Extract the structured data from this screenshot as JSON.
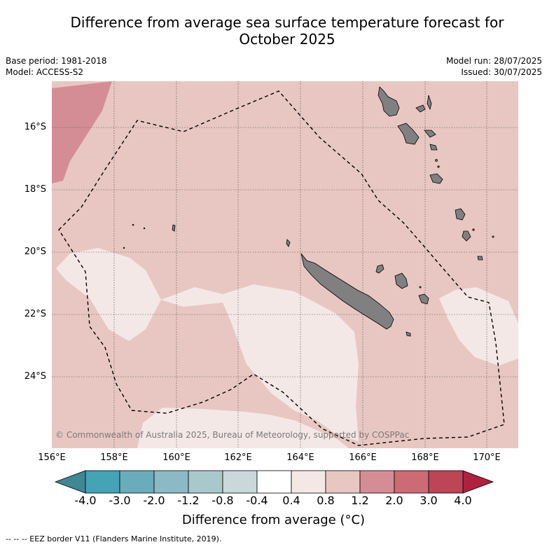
{
  "title_line1": "Difference from average sea surface temperature forecast for",
  "title_line2": "October 2025",
  "base_period": "Base period: 1981-2018",
  "model": "Model: ACCESS-S2",
  "model_run": "Model run: 28/07/2025",
  "issued": "Issued: 30/07/2025",
  "copyright": "© Commonwealth of Australia 2025, Bureau of Meteorology, supported by COSPPac",
  "footnote": "-- -- -- EEZ border V11 (Flanders Marine Institute, 2019).",
  "map": {
    "lat_labels": [
      "16°S",
      "18°S",
      "20°S",
      "22°S",
      "24°S"
    ],
    "lon_labels": [
      "156°E",
      "158°E",
      "160°E",
      "162°E",
      "164°E",
      "166°E",
      "168°E",
      "170°E"
    ],
    "extent": {
      "lon_min": 156,
      "lon_max": 171,
      "lat_north": -14.8,
      "lat_south": -26.6
    },
    "land_color": "#808080",
    "anomaly_colors": {
      "0.4_0.8": "#f4e8e7",
      "0.8_1.2": "#e8c7c2",
      "1.2_2.0": "#d58d95"
    }
  },
  "colorbar": {
    "title": "Difference from average (°C)",
    "tick_labels": [
      "-4.0",
      "-3.0",
      "-2.0",
      "-1.2",
      "-0.8",
      "-0.4",
      "0.4",
      "0.8",
      "1.2",
      "2.0",
      "3.0",
      "4.0"
    ],
    "colors": [
      "#44a3b4",
      "#6aacbb",
      "#8bbac5",
      "#a9c8cc",
      "#cad8dc",
      "#ffffff",
      "#f4e8e7",
      "#e8c7c2",
      "#d58d95",
      "#cc6a76",
      "#bc4556"
    ],
    "under_color": "#3e8795",
    "over_color": "#b0213f"
  }
}
